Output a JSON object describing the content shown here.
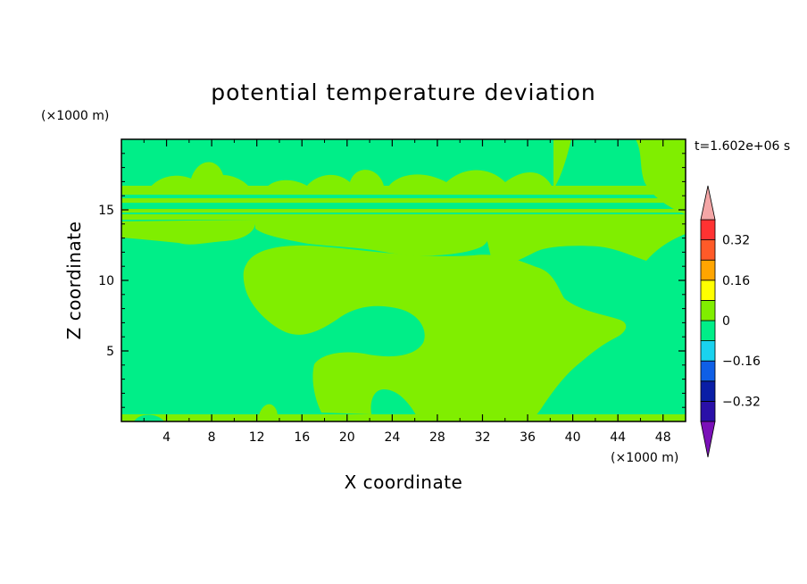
{
  "chart_data": {
    "type": "heatmap",
    "title": "potential temperature deviation",
    "xlabel": "X coordinate",
    "ylabel": "Z coordinate",
    "x_unit": "(×1000 m)",
    "y_unit": "(×1000 m)",
    "time_label": "t=1.602e+06 s",
    "xlim": [
      0,
      50
    ],
    "ylim": [
      0,
      20
    ],
    "x_ticks": [
      4,
      8,
      12,
      16,
      20,
      24,
      28,
      32,
      36,
      40,
      44,
      48
    ],
    "y_ticks": [
      5,
      10,
      15
    ],
    "colorbar": {
      "levels": [
        -0.4,
        -0.32,
        -0.24,
        -0.16,
        -0.08,
        0,
        0.08,
        0.16,
        0.24,
        0.32,
        0.4
      ],
      "colors": [
        "#5a00b4",
        "#2a10a8",
        "#0a1ea6",
        "#0f5fe6",
        "#19d2ee",
        "#00ee88",
        "#80ee00",
        "#ffff00",
        "#ffa500",
        "#ff5a28",
        "#ff3232"
      ],
      "under_color": "#7a10b8",
      "over_color": "#f4a6a6",
      "tick_values": [
        0.32,
        0.16,
        0,
        -0.16,
        -0.32
      ],
      "tick_labels": [
        "0.32",
        "0.16",
        "0",
        "−0.16",
        "−0.32"
      ]
    },
    "field": {
      "background_level": "0.04",
      "dominant_colors": [
        "#00ee88",
        "#80ee00"
      ]
    }
  }
}
